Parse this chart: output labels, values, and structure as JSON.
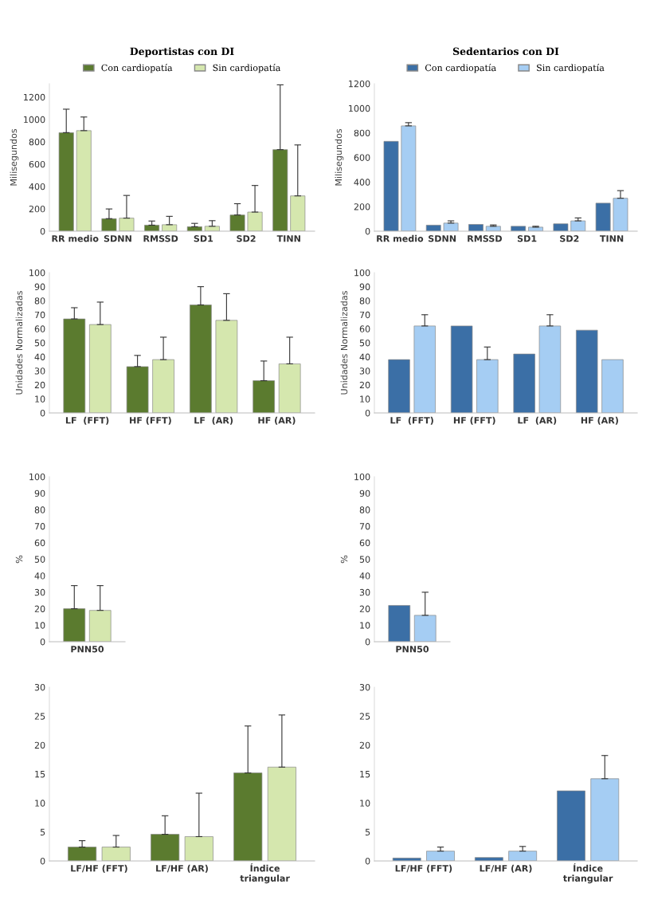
{
  "chart_data": [
    {
      "type": "bar",
      "title": "Deportistas con DI",
      "ylabel": "Milisegundos",
      "legend": "top",
      "categories": [
        "RR medio",
        "SDNN",
        "RMSSD",
        "SD1",
        "SD2",
        "TINN"
      ],
      "ylim": [
        0,
        1320
      ],
      "yticks": [
        0,
        200,
        400,
        600,
        800,
        1000,
        1200
      ],
      "series": [
        {
          "name": "Con cardiopatía",
          "color": "#5b7b2f",
          "values": [
            882,
            112,
            54,
            40,
            145,
            730
          ],
          "errors": [
            [
              882,
              1092
            ],
            [
              112,
              199
            ],
            [
              54,
              91
            ],
            [
              40,
              70
            ],
            [
              145,
              246
            ],
            [
              730,
              1310
            ]
          ]
        },
        {
          "name": "Sin cardiopatía",
          "color": "#d5e7ae",
          "values": [
            900,
            117,
            58,
            44,
            171,
            316
          ],
          "errors": [
            [
              900,
              1022
            ],
            [
              117,
              320
            ],
            [
              58,
              133
            ],
            [
              44,
              94
            ],
            [
              171,
              409
            ],
            [
              316,
              772
            ]
          ]
        }
      ]
    },
    {
      "type": "bar",
      "title": "Sedentarios con DI",
      "ylabel": "Milisegundos",
      "legend": "top",
      "categories": [
        "RR medio",
        "SDNN",
        "RMSSD",
        "SD1",
        "SD2",
        "TINN"
      ],
      "ylim": [
        0,
        1200
      ],
      "yticks": [
        0,
        200,
        400,
        600,
        800,
        1000,
        1200
      ],
      "series": [
        {
          "name": "Con cardiopatía",
          "color": "#3b6fa6",
          "values": [
            731,
            49,
            55,
            40,
            60,
            228
          ]
        },
        {
          "name": "Sin cardiopatía",
          "color": "#a5cdf3",
          "values": [
            857,
            66,
            40,
            33,
            84,
            268
          ],
          "errors": [
            [
              857,
              883
            ],
            [
              66,
              84
            ],
            [
              40,
              51
            ],
            [
              33,
              40
            ],
            [
              84,
              108
            ],
            [
              268,
              330
            ]
          ]
        }
      ]
    },
    {
      "type": "bar",
      "ylabel": "Unidades Normalizadas",
      "categories": [
        "LF  (FFT)",
        "HF (FFT)",
        "LF  (AR)",
        "HF (AR)"
      ],
      "ylim": [
        0,
        100
      ],
      "yticks": [
        0,
        10,
        20,
        30,
        40,
        50,
        60,
        70,
        80,
        90,
        100
      ],
      "series": [
        {
          "color": "#5b7b2f",
          "values": [
            67,
            33,
            77,
            23
          ],
          "errors": [
            [
              67,
              75
            ],
            [
              33,
              41
            ],
            [
              77,
              90
            ],
            [
              23,
              37
            ]
          ]
        },
        {
          "color": "#d5e7ae",
          "values": [
            63,
            38,
            66,
            35
          ],
          "errors": [
            [
              63,
              79
            ],
            [
              38,
              54
            ],
            [
              66,
              85
            ],
            [
              35,
              54
            ]
          ]
        }
      ]
    },
    {
      "type": "bar",
      "ylabel": "Unidades Normalizadas",
      "categories": [
        "LF  (FFT)",
        "HF (FFT)",
        "LF  (AR)",
        "HF (AR)"
      ],
      "ylim": [
        0,
        100
      ],
      "yticks": [
        0,
        10,
        20,
        30,
        40,
        50,
        60,
        70,
        80,
        90,
        100
      ],
      "series": [
        {
          "color": "#3b6fa6",
          "values": [
            38,
            62,
            42,
            59
          ]
        },
        {
          "color": "#a5cdf3",
          "values": [
            62,
            38,
            62,
            38
          ],
          "errors": [
            [
              62,
              70
            ],
            [
              38,
              47
            ],
            [
              62,
              70
            ],
            null
          ]
        }
      ]
    },
    {
      "type": "bar",
      "ylabel": "%",
      "categories": [
        "PNN50"
      ],
      "ylim": [
        0,
        100
      ],
      "yticks": [
        0,
        10,
        20,
        30,
        40,
        50,
        60,
        70,
        80,
        90,
        100
      ],
      "series": [
        {
          "color": "#5b7b2f",
          "values": [
            20
          ],
          "errors": [
            [
              20,
              34
            ]
          ]
        },
        {
          "color": "#d5e7ae",
          "values": [
            19
          ],
          "errors": [
            [
              19,
              34
            ]
          ]
        }
      ]
    },
    {
      "type": "bar",
      "ylabel": "%",
      "categories": [
        "PNN50"
      ],
      "ylim": [
        0,
        100
      ],
      "yticks": [
        0,
        10,
        20,
        30,
        40,
        50,
        60,
        70,
        80,
        90,
        100
      ],
      "series": [
        {
          "color": "#3b6fa6",
          "values": [
            22
          ]
        },
        {
          "color": "#a5cdf3",
          "values": [
            16
          ],
          "errors": [
            [
              16,
              30
            ]
          ]
        }
      ]
    },
    {
      "type": "bar",
      "categories": [
        "LF/HF (FFT)",
        "LF/HF (AR)",
        "Índice\ntriangular"
      ],
      "ylim": [
        0,
        30
      ],
      "yticks": [
        0,
        5,
        10,
        15,
        20,
        25,
        30
      ],
      "series": [
        {
          "color": "#5b7b2f",
          "values": [
            2.4,
            4.6,
            15.2
          ],
          "errors": [
            [
              2.4,
              3.5
            ],
            [
              4.6,
              7.8
            ],
            [
              15.2,
              23.3
            ]
          ]
        },
        {
          "color": "#d5e7ae",
          "values": [
            2.4,
            4.2,
            16.2
          ],
          "errors": [
            [
              2.4,
              4.4
            ],
            [
              4.2,
              11.7
            ],
            [
              16.2,
              25.2
            ]
          ]
        }
      ]
    },
    {
      "type": "bar",
      "categories": [
        "LF/HF (FFT)",
        "LF/HF (AR)",
        "Índice\ntriangular"
      ],
      "ylim": [
        0,
        30
      ],
      "yticks": [
        0,
        5,
        10,
        15,
        20,
        25,
        30
      ],
      "series": [
        {
          "color": "#3b6fa6",
          "values": [
            0.5,
            0.6,
            12.1
          ]
        },
        {
          "color": "#a5cdf3",
          "values": [
            1.7,
            1.7,
            14.2
          ],
          "errors": [
            [
              1.7,
              2.4
            ],
            [
              1.7,
              2.5
            ],
            [
              14.2,
              18.2
            ]
          ]
        }
      ]
    }
  ]
}
